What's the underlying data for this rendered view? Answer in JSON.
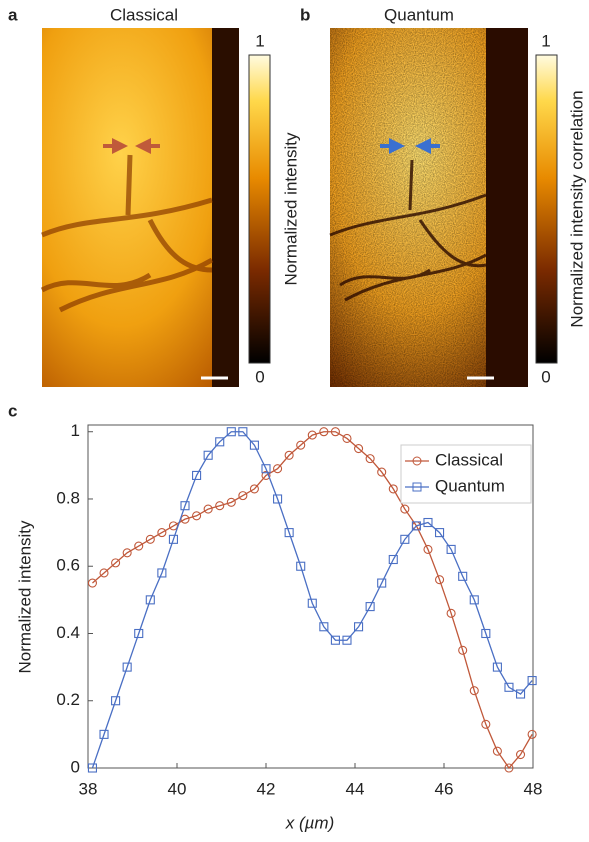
{
  "panels": [
    {
      "label": "a",
      "title": "Classical",
      "colorbar_label": "Normalized intensity",
      "colorbar_max": "1",
      "colorbar_min": "0"
    },
    {
      "label": "b",
      "title": "Quantum",
      "colorbar_label": "Normalized intensity correlation",
      "colorbar_max": "1",
      "colorbar_min": "0"
    }
  ],
  "chart_data": {
    "type": "line",
    "label": "c",
    "x_label": "x (µm)",
    "y_label": "Normalized intensity",
    "x": [
      38.1,
      38.36,
      38.62,
      38.88,
      39.14,
      39.4,
      39.66,
      39.92,
      40.18,
      40.44,
      40.7,
      40.96,
      41.22,
      41.48,
      41.74,
      42.0,
      42.26,
      42.52,
      42.78,
      43.04,
      43.3,
      43.56,
      43.82,
      44.08,
      44.34,
      44.6,
      44.86,
      45.12,
      45.38,
      45.64,
      45.9,
      46.16,
      46.42,
      46.68,
      46.94,
      47.2,
      47.46,
      47.72,
      47.98
    ],
    "series": [
      {
        "name": "Classical",
        "color": "#c0583a",
        "marker": "circle",
        "values": [
          0.55,
          0.58,
          0.61,
          0.64,
          0.66,
          0.68,
          0.7,
          0.72,
          0.74,
          0.75,
          0.77,
          0.78,
          0.79,
          0.81,
          0.83,
          0.87,
          0.89,
          0.93,
          0.96,
          0.99,
          1.0,
          1.0,
          0.98,
          0.95,
          0.92,
          0.88,
          0.83,
          0.77,
          0.72,
          0.65,
          0.56,
          0.46,
          0.35,
          0.23,
          0.13,
          0.05,
          0.0,
          0.04,
          0.1
        ]
      },
      {
        "name": "Quantum",
        "color": "#4a6fc4",
        "marker": "square",
        "values": [
          0,
          0.1,
          0.2,
          0.3,
          0.4,
          0.5,
          0.58,
          0.68,
          0.78,
          0.87,
          0.93,
          0.97,
          1.0,
          1.0,
          0.96,
          0.89,
          0.8,
          0.7,
          0.6,
          0.49,
          0.42,
          0.38,
          0.38,
          0.42,
          0.48,
          0.55,
          0.62,
          0.68,
          0.72,
          0.73,
          0.7,
          0.65,
          0.57,
          0.5,
          0.4,
          0.3,
          0.24,
          0.22,
          0.26
        ]
      }
    ],
    "xlim": [
      38,
      48
    ],
    "xticks": [
      38,
      40,
      42,
      44,
      46,
      48
    ],
    "ylim": [
      0,
      1.02
    ],
    "yticks": [
      0,
      0.2,
      0.4,
      0.6,
      0.8,
      1
    ],
    "legend": "upper right"
  }
}
